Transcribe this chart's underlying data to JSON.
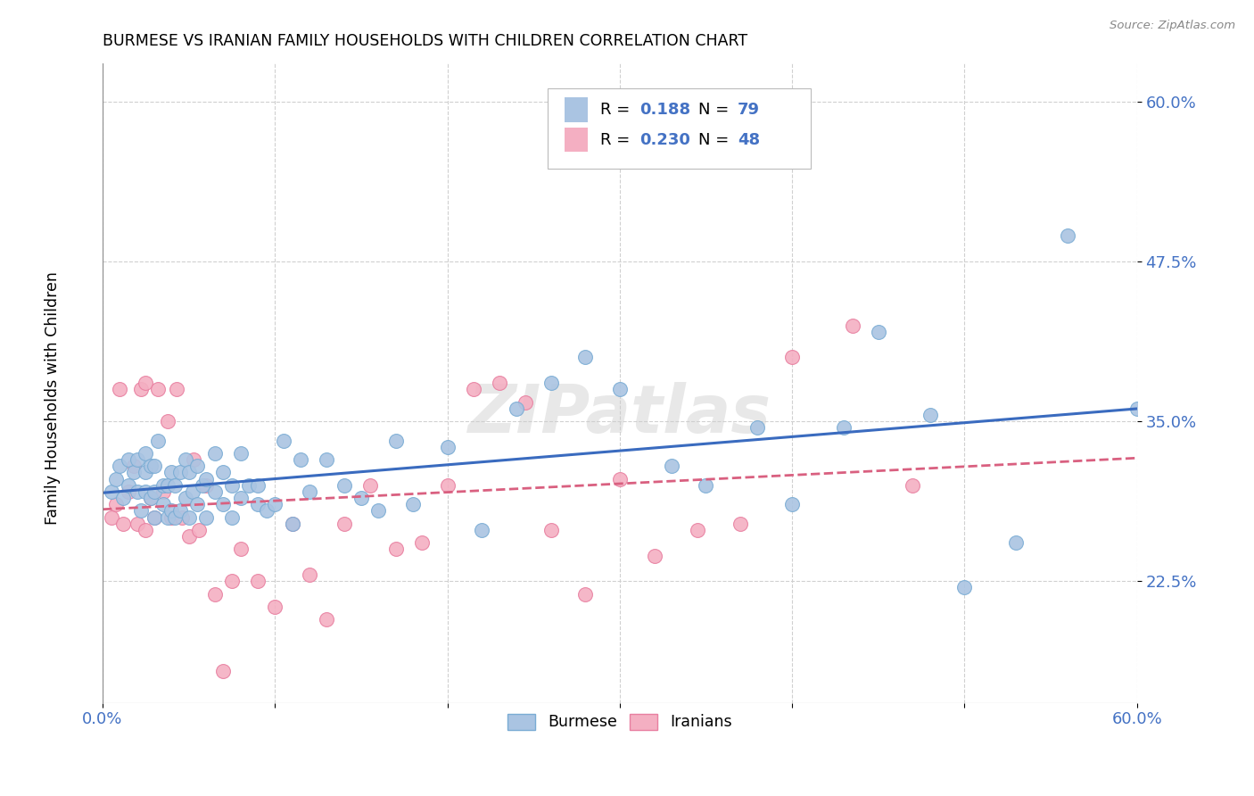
{
  "title": "BURMESE VS IRANIAN FAMILY HOUSEHOLDS WITH CHILDREN CORRELATION CHART",
  "source": "Source: ZipAtlas.com",
  "ylabel": "Family Households with Children",
  "xlim": [
    0.0,
    0.6
  ],
  "ylim": [
    0.13,
    0.63
  ],
  "x_tick_vals": [
    0.0,
    0.1,
    0.2,
    0.3,
    0.4,
    0.5,
    0.6
  ],
  "y_tick_vals": [
    0.225,
    0.35,
    0.475,
    0.6
  ],
  "y_tick_labels": [
    "22.5%",
    "35.0%",
    "47.5%",
    "60.0%"
  ],
  "burmese_color": "#aac4e2",
  "burmese_edge": "#7aacd4",
  "iranian_color": "#f4afc2",
  "iranian_edge": "#e87fa0",
  "trend_burmese_color": "#3a6bbf",
  "trend_iranian_color": "#d96080",
  "burmese_R": 0.188,
  "burmese_N": 79,
  "iranian_R": 0.23,
  "iranian_N": 48,
  "watermark": "ZIPatlas",
  "legend_burmese_color": "#aac4e2",
  "legend_iranian_color": "#f4afc2",
  "tick_color": "#4472c4",
  "burmese_x": [
    0.005,
    0.008,
    0.01,
    0.012,
    0.015,
    0.015,
    0.018,
    0.02,
    0.02,
    0.022,
    0.025,
    0.025,
    0.025,
    0.028,
    0.028,
    0.03,
    0.03,
    0.03,
    0.032,
    0.035,
    0.035,
    0.038,
    0.038,
    0.04,
    0.04,
    0.042,
    0.042,
    0.045,
    0.045,
    0.048,
    0.048,
    0.05,
    0.05,
    0.052,
    0.055,
    0.055,
    0.058,
    0.06,
    0.06,
    0.065,
    0.065,
    0.07,
    0.07,
    0.075,
    0.075,
    0.08,
    0.08,
    0.085,
    0.09,
    0.09,
    0.095,
    0.1,
    0.105,
    0.11,
    0.115,
    0.12,
    0.13,
    0.14,
    0.15,
    0.16,
    0.17,
    0.18,
    0.2,
    0.22,
    0.24,
    0.26,
    0.28,
    0.3,
    0.33,
    0.35,
    0.38,
    0.4,
    0.43,
    0.45,
    0.48,
    0.5,
    0.53,
    0.56,
    0.6
  ],
  "burmese_y": [
    0.295,
    0.305,
    0.315,
    0.29,
    0.3,
    0.32,
    0.31,
    0.295,
    0.32,
    0.28,
    0.295,
    0.31,
    0.325,
    0.29,
    0.315,
    0.275,
    0.295,
    0.315,
    0.335,
    0.285,
    0.3,
    0.275,
    0.3,
    0.28,
    0.31,
    0.275,
    0.3,
    0.28,
    0.31,
    0.29,
    0.32,
    0.275,
    0.31,
    0.295,
    0.285,
    0.315,
    0.3,
    0.275,
    0.305,
    0.295,
    0.325,
    0.285,
    0.31,
    0.275,
    0.3,
    0.29,
    0.325,
    0.3,
    0.285,
    0.3,
    0.28,
    0.285,
    0.335,
    0.27,
    0.32,
    0.295,
    0.32,
    0.3,
    0.29,
    0.28,
    0.335,
    0.285,
    0.33,
    0.265,
    0.36,
    0.38,
    0.4,
    0.375,
    0.315,
    0.3,
    0.345,
    0.285,
    0.345,
    0.42,
    0.355,
    0.22,
    0.255,
    0.495,
    0.36
  ],
  "iranian_x": [
    0.005,
    0.008,
    0.01,
    0.012,
    0.015,
    0.018,
    0.02,
    0.022,
    0.025,
    0.025,
    0.028,
    0.03,
    0.032,
    0.035,
    0.038,
    0.04,
    0.043,
    0.046,
    0.05,
    0.053,
    0.056,
    0.06,
    0.065,
    0.07,
    0.075,
    0.08,
    0.09,
    0.1,
    0.11,
    0.12,
    0.13,
    0.14,
    0.155,
    0.17,
    0.185,
    0.2,
    0.215,
    0.23,
    0.245,
    0.26,
    0.28,
    0.3,
    0.32,
    0.345,
    0.37,
    0.4,
    0.435,
    0.47
  ],
  "iranian_y": [
    0.275,
    0.285,
    0.375,
    0.27,
    0.295,
    0.315,
    0.27,
    0.375,
    0.265,
    0.38,
    0.29,
    0.275,
    0.375,
    0.295,
    0.35,
    0.275,
    0.375,
    0.275,
    0.26,
    0.32,
    0.265,
    0.3,
    0.215,
    0.155,
    0.225,
    0.25,
    0.225,
    0.205,
    0.27,
    0.23,
    0.195,
    0.27,
    0.3,
    0.25,
    0.255,
    0.3,
    0.375,
    0.38,
    0.365,
    0.265,
    0.215,
    0.305,
    0.245,
    0.265,
    0.27,
    0.4,
    0.425,
    0.3
  ]
}
